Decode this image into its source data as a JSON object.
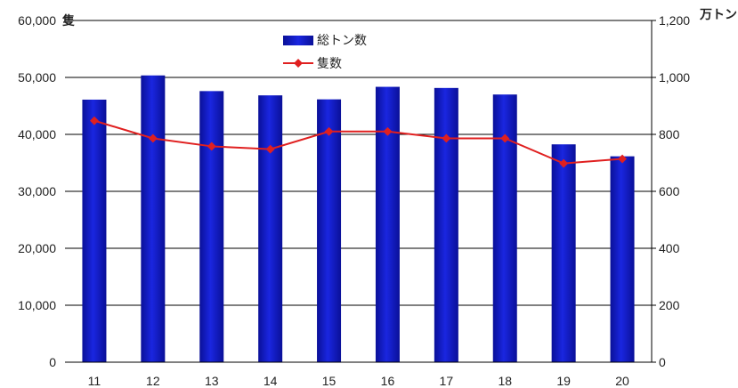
{
  "chart_data": {
    "type": "bar",
    "categories": [
      "11",
      "12",
      "13",
      "14",
      "15",
      "16",
      "17",
      "18",
      "19",
      "20"
    ],
    "series": [
      {
        "name": "総トン数",
        "type": "bar",
        "axis": "right",
        "color": "#1018c8",
        "values": [
          922,
          1007,
          952,
          937,
          923,
          967,
          963,
          940,
          765,
          723
        ]
      },
      {
        "name": "隻数",
        "type": "line",
        "axis": "left",
        "color": "#e02020",
        "values": [
          42400,
          39300,
          37900,
          37400,
          40500,
          40500,
          39300,
          39300,
          34900,
          35700
        ]
      }
    ],
    "left_axis": {
      "unit": "隻",
      "ylim": [
        0,
        60000
      ],
      "ticks": [
        "0",
        "10,000",
        "20,000",
        "30,000",
        "40,000",
        "50,000",
        "60,000"
      ]
    },
    "right_axis": {
      "unit": "万トン",
      "ylim": [
        0,
        1200
      ],
      "ticks": [
        "0",
        "200",
        "400",
        "600",
        "800",
        "1,000",
        "1,200"
      ]
    },
    "grid": true,
    "legend_position": "top-center"
  }
}
